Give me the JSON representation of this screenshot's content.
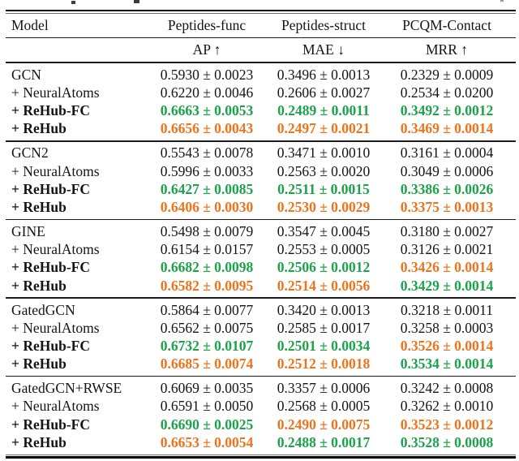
{
  "colors": {
    "best_green": "#1CA24A",
    "second_orange": "#ED741D",
    "text": "#141414"
  },
  "table": {
    "columns": [
      "Model",
      "Peptides-func",
      "Peptides-struct",
      "PCQM-Contact"
    ],
    "metrics": [
      "AP ↑",
      "MAE ↓",
      "MRR ↑"
    ],
    "blocks": [
      {
        "rows": [
          {
            "label": "GCN",
            "bold": false,
            "cells": [
              {
                "text": "0.5930 ± 0.0023",
                "style": "plain"
              },
              {
                "text": "0.3496 ± 0.0013",
                "style": "plain"
              },
              {
                "text": "0.2329 ± 0.0009",
                "style": "plain"
              }
            ]
          },
          {
            "label": "+ NeuralAtoms",
            "bold": false,
            "cells": [
              {
                "text": "0.6220 ± 0.0046",
                "style": "plain"
              },
              {
                "text": "0.2606 ± 0.0027",
                "style": "plain"
              },
              {
                "text": "0.2534 ± 0.0200",
                "style": "plain"
              }
            ]
          },
          {
            "label": "+ ReHub-FC",
            "bold": true,
            "cells": [
              {
                "text": "0.6663 ± 0.0053",
                "style": "green"
              },
              {
                "text": "0.2489 ± 0.0011",
                "style": "green"
              },
              {
                "text": "0.3492 ± 0.0012",
                "style": "green"
              }
            ]
          },
          {
            "label": "+ ReHub",
            "bold": true,
            "cells": [
              {
                "text": "0.6656 ± 0.0043",
                "style": "orange"
              },
              {
                "text": "0.2497 ± 0.0021",
                "style": "orange"
              },
              {
                "text": "0.3469 ± 0.0014",
                "style": "orange"
              }
            ]
          }
        ]
      },
      {
        "rows": [
          {
            "label": "GCN2",
            "bold": false,
            "cells": [
              {
                "text": "0.5543 ± 0.0078",
                "style": "plain"
              },
              {
                "text": "0.3471 ± 0.0010",
                "style": "plain"
              },
              {
                "text": "0.3161 ± 0.0004",
                "style": "plain"
              }
            ]
          },
          {
            "label": "+ NeuralAtoms",
            "bold": false,
            "cells": [
              {
                "text": "0.5996 ± 0.0033",
                "style": "plain"
              },
              {
                "text": "0.2563 ± 0.0020",
                "style": "plain"
              },
              {
                "text": "0.3049 ± 0.0006",
                "style": "plain"
              }
            ]
          },
          {
            "label": "+ ReHub-FC",
            "bold": true,
            "cells": [
              {
                "text": "0.6427 ± 0.0085",
                "style": "green"
              },
              {
                "text": "0.2511 ± 0.0015",
                "style": "green"
              },
              {
                "text": "0.3386 ± 0.0026",
                "style": "green"
              }
            ]
          },
          {
            "label": "+ ReHub",
            "bold": true,
            "cells": [
              {
                "text": "0.6406 ± 0.0030",
                "style": "orange"
              },
              {
                "text": "0.2530 ± 0.0029",
                "style": "orange"
              },
              {
                "text": "0.3375 ± 0.0013",
                "style": "orange"
              }
            ]
          }
        ]
      },
      {
        "rows": [
          {
            "label": "GINE",
            "bold": false,
            "cells": [
              {
                "text": "0.5498 ± 0.0079",
                "style": "plain"
              },
              {
                "text": "0.3547 ± 0.0045",
                "style": "plain"
              },
              {
                "text": "0.3180 ± 0.0027",
                "style": "plain"
              }
            ]
          },
          {
            "label": "+ NeuralAtoms",
            "bold": false,
            "cells": [
              {
                "text": "0.6154 ± 0.0157",
                "style": "plain"
              },
              {
                "text": "0.2553 ± 0.0005",
                "style": "plain"
              },
              {
                "text": "0.3126 ± 0.0021",
                "style": "plain"
              }
            ]
          },
          {
            "label": "+ ReHub-FC",
            "bold": true,
            "cells": [
              {
                "text": "0.6682 ± 0.0098",
                "style": "green"
              },
              {
                "text": "0.2506 ± 0.0012",
                "style": "green"
              },
              {
                "text": "0.3426 ± 0.0014",
                "style": "orange"
              }
            ]
          },
          {
            "label": "+ ReHub",
            "bold": true,
            "cells": [
              {
                "text": "0.6582 ± 0.0095",
                "style": "orange"
              },
              {
                "text": "0.2514 ± 0.0056",
                "style": "orange"
              },
              {
                "text": "0.3429 ± 0.0014",
                "style": "green"
              }
            ]
          }
        ]
      },
      {
        "rows": [
          {
            "label": "GatedGCN",
            "bold": false,
            "cells": [
              {
                "text": "0.5864 ± 0.0077",
                "style": "plain"
              },
              {
                "text": "0.3420 ± 0.0013",
                "style": "plain"
              },
              {
                "text": "0.3218 ± 0.0011",
                "style": "plain"
              }
            ]
          },
          {
            "label": "+ NeuralAtoms",
            "bold": false,
            "cells": [
              {
                "text": "0.6562 ± 0.0075",
                "style": "plain"
              },
              {
                "text": "0.2585 ± 0.0017",
                "style": "plain"
              },
              {
                "text": "0.3258 ± 0.0003",
                "style": "plain"
              }
            ]
          },
          {
            "label": "+ ReHub-FC",
            "bold": true,
            "cells": [
              {
                "text": "0.6732 ± 0.0107",
                "style": "green"
              },
              {
                "text": "0.2501 ± 0.0034",
                "style": "green"
              },
              {
                "text": "0.3526 ± 0.0014",
                "style": "orange"
              }
            ]
          },
          {
            "label": "+ ReHub",
            "bold": true,
            "cells": [
              {
                "text": "0.6685 ± 0.0074",
                "style": "orange"
              },
              {
                "text": "0.2512 ± 0.0018",
                "style": "orange"
              },
              {
                "text": "0.3534 ± 0.0014",
                "style": "green"
              }
            ]
          }
        ]
      },
      {
        "rows": [
          {
            "label": "GatedGCN+RWSE",
            "bold": false,
            "cells": [
              {
                "text": "0.6069 ± 0.0035",
                "style": "plain"
              },
              {
                "text": "0.3357 ± 0.0006",
                "style": "plain"
              },
              {
                "text": "0.3242 ± 0.0008",
                "style": "plain"
              }
            ]
          },
          {
            "label": "+ NeuralAtoms",
            "bold": false,
            "cells": [
              {
                "text": "0.6591 ± 0.0050",
                "style": "plain"
              },
              {
                "text": "0.2568 ± 0.0005",
                "style": "plain"
              },
              {
                "text": "0.3262 ± 0.0010",
                "style": "plain"
              }
            ]
          },
          {
            "label": "+ ReHub-FC",
            "bold": true,
            "cells": [
              {
                "text": "0.6690 ± 0.0025",
                "style": "green"
              },
              {
                "text": "0.2490 ± 0.0075",
                "style": "orange"
              },
              {
                "text": "0.3523 ± 0.0012",
                "style": "orange"
              }
            ]
          },
          {
            "label": "+ ReHub",
            "bold": true,
            "cells": [
              {
                "text": "0.6653 ± 0.0054",
                "style": "orange"
              },
              {
                "text": "0.2488 ± 0.0017",
                "style": "green"
              },
              {
                "text": "0.3528 ± 0.0008",
                "style": "green"
              }
            ]
          }
        ]
      }
    ]
  }
}
